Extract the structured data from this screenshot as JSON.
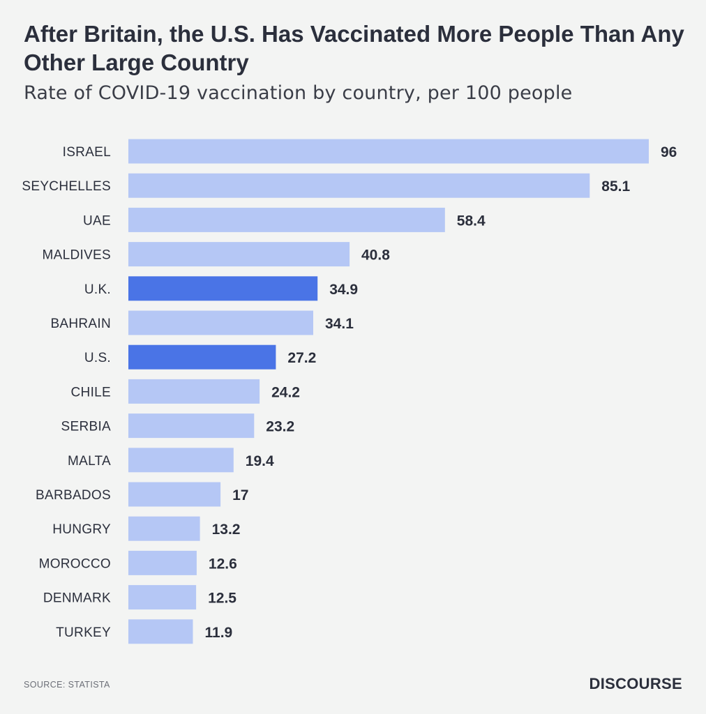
{
  "chart_data": {
    "type": "bar",
    "orientation": "horizontal",
    "title": "After Britain, the U.S. Has Vaccinated More People Than Any Other Large Country",
    "subtitle": "Rate of COVID-19 vaccination by country, per 100 people",
    "categories": [
      "ISRAEL",
      "SEYCHELLES",
      "UAE",
      "MALDIVES",
      "U.K.",
      "BAHRAIN",
      "U.S.",
      "CHILE",
      "SERBIA",
      "MALTA",
      "BARBADOS",
      "HUNGRY",
      "MOROCCO",
      "DENMARK",
      "TURKEY"
    ],
    "values": [
      96,
      85.1,
      58.4,
      40.8,
      34.9,
      34.1,
      27.2,
      24.2,
      23.2,
      19.4,
      17,
      13.2,
      12.6,
      12.5,
      11.9
    ],
    "value_labels": [
      "96",
      "85.1",
      "58.4",
      "40.8",
      "34.9",
      "34.1",
      "27.2",
      "24.2",
      "23.2",
      "19.4",
      "17",
      "13.2",
      "12.6",
      "12.5",
      "11.9"
    ],
    "highlighted": [
      "U.K.",
      "U.S."
    ],
    "colors": {
      "default_bar": "#b5c7f5",
      "highlight_bar": "#4a74e6",
      "text": "#2b2f3c"
    },
    "xlim": [
      0,
      96
    ],
    "grid": false,
    "xlabel": "",
    "ylabel": ""
  },
  "footer": {
    "source": "SOURCE: STATISTA",
    "brand": "DISCOURSE"
  }
}
